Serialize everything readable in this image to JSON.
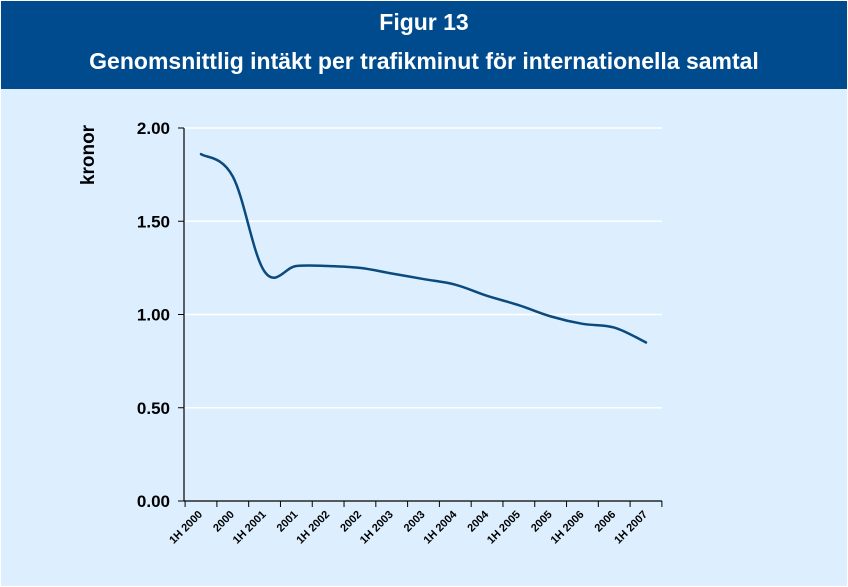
{
  "header": {
    "figure_label": "Figur 13",
    "title": "Genomsnittlig intäkt per trafikminut för internationella samtal"
  },
  "colors": {
    "header_bg": "#004b8d",
    "plot_bg": "#ddefff",
    "line": "#0b4a7e",
    "gridline": "#ffffff"
  },
  "chart_data": {
    "type": "line",
    "title": "Genomsnittlig intäkt per trafikminut för internationella samtal",
    "ylabel": "kronor",
    "xlabel": "",
    "ylim": [
      0,
      2.0
    ],
    "yticks": [
      0,
      0.5,
      1.0,
      1.5,
      2.0
    ],
    "ytick_labels": [
      "0.00",
      "0.50",
      "1.00",
      "1.50",
      "2.00"
    ],
    "grid": "horizontal",
    "categories": [
      "1H 2000",
      "2000",
      "1H 2001",
      "2001",
      "1H 2002",
      "2002",
      "1H 2003",
      "2003",
      "1H 2004",
      "2004",
      "1H 2005",
      "2005",
      "1H 2006",
      "2006",
      "1H 2007"
    ],
    "series": [
      {
        "values": [
          1.86,
          1.74,
          1.23,
          1.26,
          1.26,
          1.25,
          1.22,
          1.19,
          1.16,
          1.1,
          1.05,
          0.99,
          0.95,
          0.93,
          0.85
        ]
      }
    ]
  }
}
